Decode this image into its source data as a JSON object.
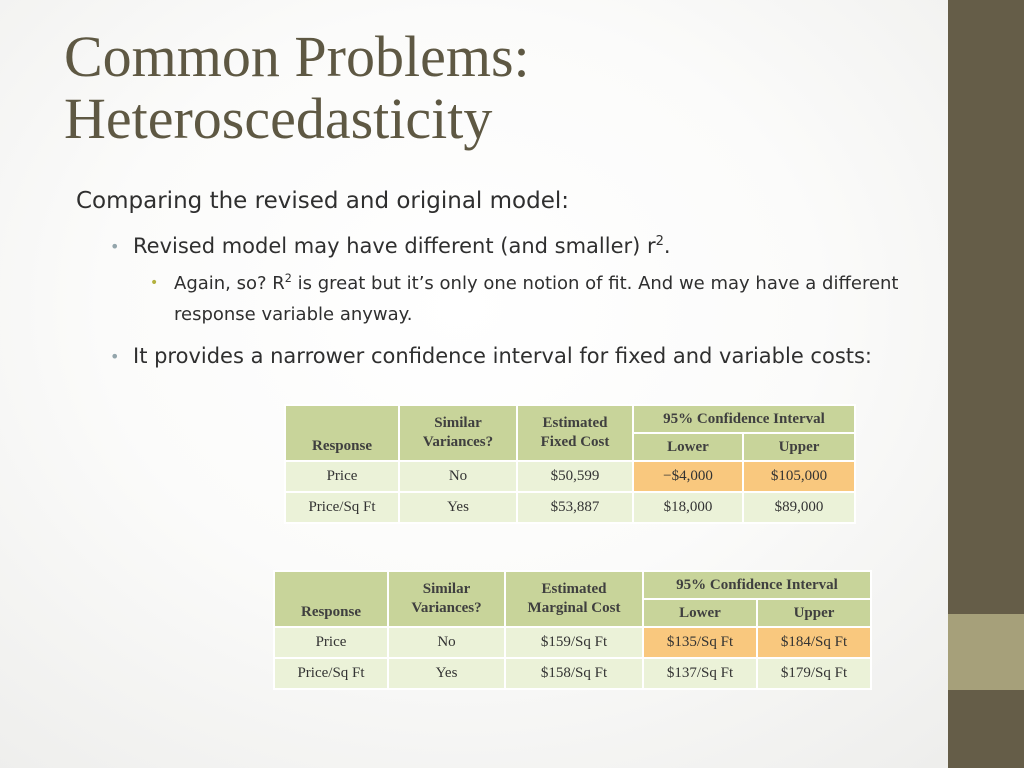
{
  "slide": {
    "title_line1": "Common Problems:",
    "title_line2": "Heteroscedasticity",
    "level1": "Comparing the revised and original model:",
    "bullet1": {
      "text": "Revised model may have different (and smaller) r",
      "sup": "2",
      "suffix": "."
    },
    "bullet1_sub": {
      "pre": "Again, so? R",
      "sup": "2",
      "post": " is great but it’s only one notion of fit. And we may have a different response variable anyway."
    },
    "bullet2": "It provides a narrower confidence interval for fixed and variable costs:",
    "colors": {
      "sidebar": "#655d48",
      "sidebar_band": "#a6a07a",
      "header_cell": "#c8d49a",
      "body_cell": "#ebf2d8",
      "highlight_cell": "#f9c87e"
    }
  },
  "table_fixed": {
    "headers": {
      "response": "Response",
      "similar": [
        "Similar",
        "Variances?"
      ],
      "estimate": [
        "Estimated",
        "Fixed Cost"
      ],
      "ci": "95% Confidence Interval",
      "lower": "Lower",
      "upper": "Upper"
    },
    "rows": [
      {
        "response": "Price",
        "similar": "No",
        "estimate": "$50,599",
        "lower": "−$4,000",
        "upper": "$105,000"
      },
      {
        "response": "Price/Sq Ft",
        "similar": "Yes",
        "estimate": "$53,887",
        "lower": "$18,000",
        "upper": "$89,000"
      }
    ]
  },
  "table_marginal": {
    "headers": {
      "response": "Response",
      "similar": [
        "Similar",
        "Variances?"
      ],
      "estimate": [
        "Estimated",
        "Marginal Cost"
      ],
      "ci": "95% Confidence Interval",
      "lower": "Lower",
      "upper": "Upper"
    },
    "rows": [
      {
        "response": "Price",
        "similar": "No",
        "estimate": "$159/Sq Ft",
        "lower": "$135/Sq Ft",
        "upper": "$184/Sq Ft"
      },
      {
        "response": "Price/Sq Ft",
        "similar": "Yes",
        "estimate": "$158/Sq Ft",
        "lower": "$137/Sq Ft",
        "upper": "$179/Sq Ft"
      }
    ]
  }
}
